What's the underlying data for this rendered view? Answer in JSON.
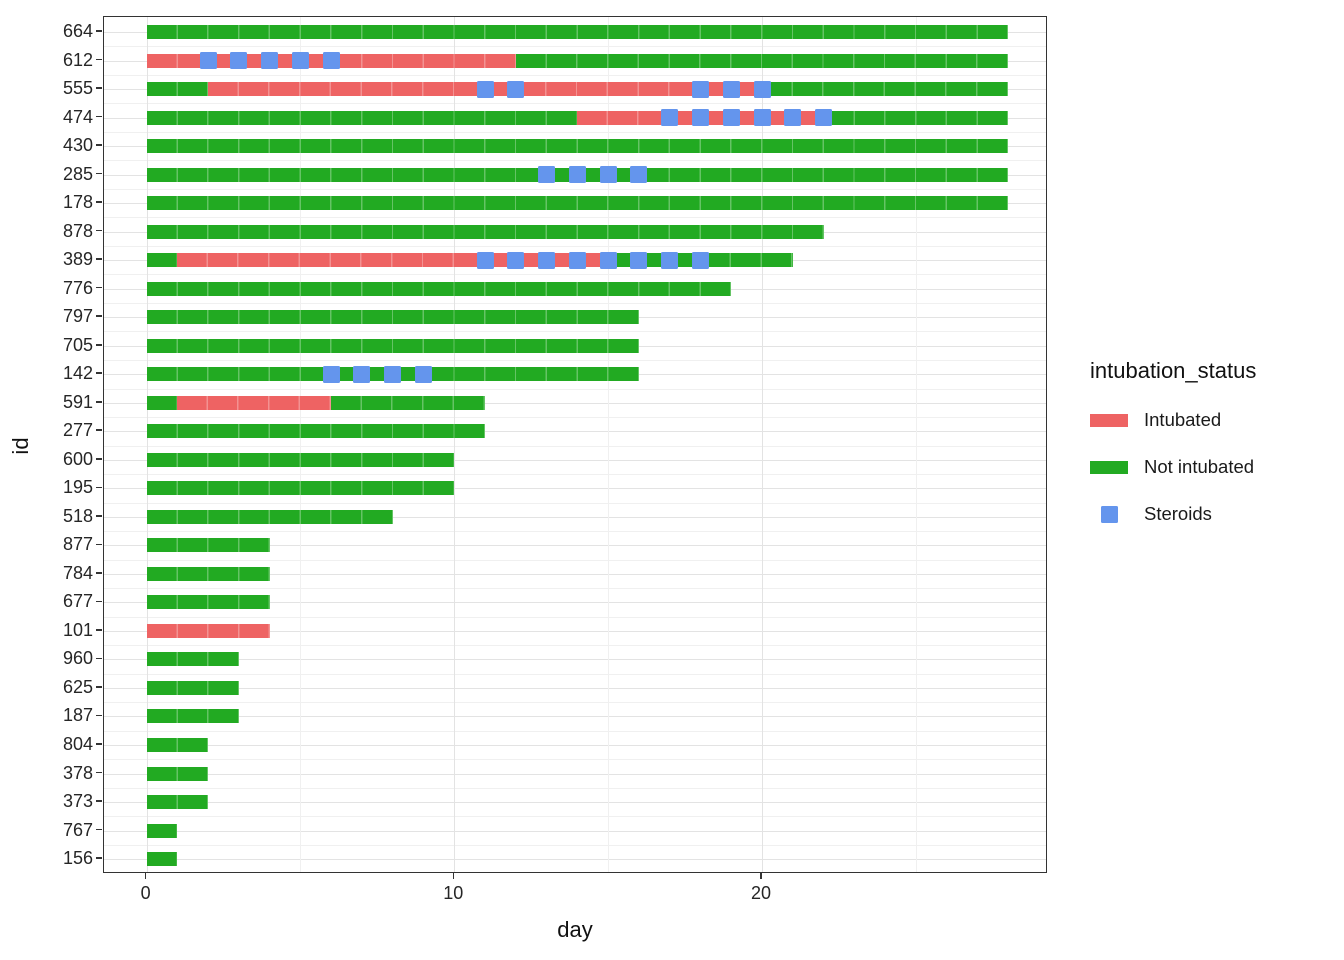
{
  "colors": {
    "intubated": "#EE6363",
    "not_intubated": "#22AA22",
    "steroids": "#6495ED",
    "grid_major": "#e3e3e3",
    "grid_minor": "#f0f0f0",
    "panel_border": "#333333",
    "tick_text": "#262626"
  },
  "legend": {
    "title": "intubation_status",
    "items": [
      {
        "label": "Intubated",
        "key": "bar",
        "color_key": "intubated"
      },
      {
        "label": "Not intubated",
        "key": "bar",
        "color_key": "not_intubated"
      },
      {
        "label": "Steroids",
        "key": "square",
        "color_key": "steroids"
      }
    ]
  },
  "chart_data": {
    "type": "timeline",
    "title": "",
    "xlabel": "day",
    "ylabel": "id",
    "x_major_ticks": [
      0,
      10,
      20
    ],
    "x_minor_ticks": [
      5,
      15,
      25
    ],
    "xlim": [
      -1.4,
      29.3
    ],
    "grid": true,
    "legend_position": "right",
    "statuses": {
      "Intubated": "intubated",
      "Not intubated": "not_intubated"
    },
    "rows": [
      {
        "id": "664",
        "segments": [
          {
            "status": "Not intubated",
            "start": 0,
            "end": 28
          }
        ],
        "steroids": []
      },
      {
        "id": "612",
        "segments": [
          {
            "status": "Intubated",
            "start": 0,
            "end": 12
          },
          {
            "status": "Not intubated",
            "start": 12,
            "end": 28
          }
        ],
        "steroids": [
          2,
          3,
          4,
          5,
          6
        ]
      },
      {
        "id": "555",
        "segments": [
          {
            "status": "Not intubated",
            "start": 0,
            "end": 2
          },
          {
            "status": "Intubated",
            "start": 2,
            "end": 20
          },
          {
            "status": "Not intubated",
            "start": 20,
            "end": 28
          }
        ],
        "steroids": [
          11,
          12,
          18,
          19,
          20
        ]
      },
      {
        "id": "474",
        "segments": [
          {
            "status": "Not intubated",
            "start": 0,
            "end": 14
          },
          {
            "status": "Intubated",
            "start": 14,
            "end": 22
          },
          {
            "status": "Not intubated",
            "start": 22,
            "end": 28
          }
        ],
        "steroids": [
          17,
          18,
          19,
          20,
          21,
          22
        ]
      },
      {
        "id": "430",
        "segments": [
          {
            "status": "Not intubated",
            "start": 0,
            "end": 28
          }
        ],
        "steroids": []
      },
      {
        "id": "285",
        "segments": [
          {
            "status": "Not intubated",
            "start": 0,
            "end": 28
          }
        ],
        "steroids": [
          13,
          14,
          15,
          16
        ]
      },
      {
        "id": "178",
        "segments": [
          {
            "status": "Not intubated",
            "start": 0,
            "end": 28
          }
        ],
        "steroids": []
      },
      {
        "id": "878",
        "segments": [
          {
            "status": "Not intubated",
            "start": 0,
            "end": 22
          }
        ],
        "steroids": []
      },
      {
        "id": "389",
        "segments": [
          {
            "status": "Not intubated",
            "start": 0,
            "end": 1
          },
          {
            "status": "Intubated",
            "start": 1,
            "end": 15
          },
          {
            "status": "Not intubated",
            "start": 15,
            "end": 21
          }
        ],
        "steroids": [
          11,
          12,
          13,
          14,
          15,
          16,
          17,
          18
        ]
      },
      {
        "id": "776",
        "segments": [
          {
            "status": "Not intubated",
            "start": 0,
            "end": 19
          }
        ],
        "steroids": []
      },
      {
        "id": "797",
        "segments": [
          {
            "status": "Not intubated",
            "start": 0,
            "end": 16
          }
        ],
        "steroids": []
      },
      {
        "id": "705",
        "segments": [
          {
            "status": "Not intubated",
            "start": 0,
            "end": 16
          }
        ],
        "steroids": []
      },
      {
        "id": "142",
        "segments": [
          {
            "status": "Not intubated",
            "start": 0,
            "end": 16
          }
        ],
        "steroids": [
          6,
          7,
          8,
          9
        ]
      },
      {
        "id": "591",
        "segments": [
          {
            "status": "Not intubated",
            "start": 0,
            "end": 1
          },
          {
            "status": "Intubated",
            "start": 1,
            "end": 6
          },
          {
            "status": "Not intubated",
            "start": 6,
            "end": 11
          }
        ],
        "steroids": []
      },
      {
        "id": "277",
        "segments": [
          {
            "status": "Not intubated",
            "start": 0,
            "end": 11
          }
        ],
        "steroids": []
      },
      {
        "id": "600",
        "segments": [
          {
            "status": "Not intubated",
            "start": 0,
            "end": 10
          }
        ],
        "steroids": []
      },
      {
        "id": "195",
        "segments": [
          {
            "status": "Not intubated",
            "start": 0,
            "end": 10
          }
        ],
        "steroids": []
      },
      {
        "id": "518",
        "segments": [
          {
            "status": "Not intubated",
            "start": 0,
            "end": 8
          }
        ],
        "steroids": []
      },
      {
        "id": "877",
        "segments": [
          {
            "status": "Not intubated",
            "start": 0,
            "end": 4
          }
        ],
        "steroids": []
      },
      {
        "id": "784",
        "segments": [
          {
            "status": "Not intubated",
            "start": 0,
            "end": 4
          }
        ],
        "steroids": []
      },
      {
        "id": "677",
        "segments": [
          {
            "status": "Not intubated",
            "start": 0,
            "end": 4
          }
        ],
        "steroids": []
      },
      {
        "id": "101",
        "segments": [
          {
            "status": "Intubated",
            "start": 0,
            "end": 4
          }
        ],
        "steroids": []
      },
      {
        "id": "960",
        "segments": [
          {
            "status": "Not intubated",
            "start": 0,
            "end": 3
          }
        ],
        "steroids": []
      },
      {
        "id": "625",
        "segments": [
          {
            "status": "Not intubated",
            "start": 0,
            "end": 3
          }
        ],
        "steroids": []
      },
      {
        "id": "187",
        "segments": [
          {
            "status": "Not intubated",
            "start": 0,
            "end": 3
          }
        ],
        "steroids": []
      },
      {
        "id": "804",
        "segments": [
          {
            "status": "Not intubated",
            "start": 0,
            "end": 2
          }
        ],
        "steroids": []
      },
      {
        "id": "378",
        "segments": [
          {
            "status": "Not intubated",
            "start": 0,
            "end": 2
          }
        ],
        "steroids": []
      },
      {
        "id": "373",
        "segments": [
          {
            "status": "Not intubated",
            "start": 0,
            "end": 2
          }
        ],
        "steroids": []
      },
      {
        "id": "767",
        "segments": [
          {
            "status": "Not intubated",
            "start": 0,
            "end": 1
          }
        ],
        "steroids": []
      },
      {
        "id": "156",
        "segments": [
          {
            "status": "Not intubated",
            "start": 0,
            "end": 1
          }
        ],
        "steroids": []
      }
    ]
  }
}
